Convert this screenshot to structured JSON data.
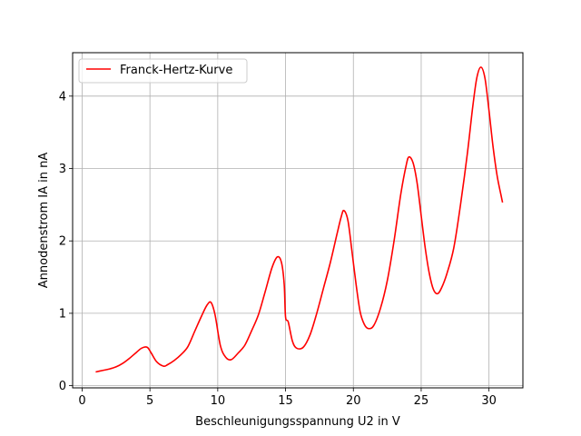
{
  "chart_data": {
    "type": "line",
    "title": "",
    "xlabel": "Beschleunigungsspannung U2 in V",
    "ylabel": "Annodenstrom IA in nA",
    "xlim": [
      -0.7,
      32.5
    ],
    "ylim": [
      -0.03,
      4.6
    ],
    "xticks": [
      0,
      5,
      10,
      15,
      20,
      25,
      30
    ],
    "yticks": [
      0,
      1,
      2,
      3,
      4
    ],
    "grid": true,
    "legend_position": "upper left",
    "series": [
      {
        "name": "Franck-Hertz-Kurve",
        "color": "#ff0000",
        "x": [
          1.0,
          1.5,
          2.0,
          2.5,
          3.0,
          3.5,
          4.0,
          4.4,
          4.8,
          5.1,
          5.5,
          6.0,
          6.3,
          6.8,
          7.3,
          7.8,
          8.3,
          8.8,
          9.2,
          9.5,
          9.8,
          10.2,
          10.6,
          11.0,
          11.5,
          12.0,
          12.5,
          13.0,
          13.5,
          14.0,
          14.4,
          14.7,
          14.9,
          15.0,
          15.2,
          15.5,
          15.8,
          16.3,
          16.8,
          17.3,
          17.8,
          18.3,
          18.8,
          19.1,
          19.3,
          19.6,
          19.9,
          20.2,
          20.5,
          20.8,
          21.1,
          21.5,
          22.0,
          22.5,
          23.0,
          23.5,
          23.9,
          24.1,
          24.4,
          24.7,
          25.0,
          25.3,
          25.6,
          25.9,
          26.2,
          26.5,
          26.9,
          27.4,
          27.9,
          28.4,
          28.8,
          29.1,
          29.4,
          29.7,
          30.0,
          30.3,
          30.6,
          30.9,
          31.0
        ],
        "y": [
          0.19,
          0.21,
          0.23,
          0.26,
          0.31,
          0.38,
          0.46,
          0.52,
          0.53,
          0.45,
          0.33,
          0.27,
          0.29,
          0.35,
          0.43,
          0.54,
          0.75,
          0.96,
          1.11,
          1.15,
          0.98,
          0.55,
          0.39,
          0.36,
          0.45,
          0.56,
          0.76,
          0.98,
          1.3,
          1.63,
          1.78,
          1.7,
          1.4,
          0.95,
          0.88,
          0.62,
          0.52,
          0.53,
          0.7,
          1.0,
          1.35,
          1.7,
          2.1,
          2.33,
          2.42,
          2.28,
          1.85,
          1.4,
          1.02,
          0.85,
          0.79,
          0.83,
          1.07,
          1.45,
          2.0,
          2.65,
          3.05,
          3.16,
          3.08,
          2.8,
          2.35,
          1.9,
          1.55,
          1.33,
          1.27,
          1.35,
          1.55,
          1.9,
          2.5,
          3.2,
          3.85,
          4.25,
          4.4,
          4.25,
          3.8,
          3.3,
          2.9,
          2.62,
          2.53
        ]
      }
    ]
  }
}
